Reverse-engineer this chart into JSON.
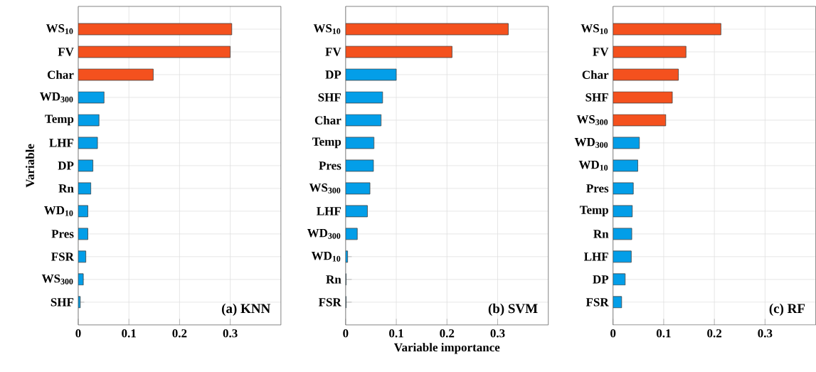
{
  "chart_data": [
    {
      "type": "bar",
      "orientation": "horizontal",
      "ylabel": "Variable",
      "annotations": [
        "(a) KNN"
      ],
      "grid": true,
      "categories": [
        "WS$_{10}$",
        "FV",
        "Char",
        "WD$_{300}$",
        "Temp",
        "LHF",
        "DP",
        "Rn",
        "WD$_{10}$",
        "Pres",
        "FSR",
        "WS$_{300}$",
        "SHF"
      ],
      "values": [
        0.303,
        0.3,
        0.148,
        0.051,
        0.041,
        0.038,
        0.029,
        0.025,
        0.019,
        0.019,
        0.015,
        0.01,
        0.004
      ],
      "colors": [
        "#f4511e",
        "#f4511e",
        "#f4511e",
        "#039ee8",
        "#039ee8",
        "#039ee8",
        "#039ee8",
        "#039ee8",
        "#039ee8",
        "#039ee8",
        "#039ee8",
        "#039ee8",
        "#039ee8"
      ],
      "xlim": [
        0,
        0.4
      ],
      "xticks": [
        0,
        0.1,
        0.2,
        0.3
      ]
    },
    {
      "type": "bar",
      "orientation": "horizontal",
      "xlabel": "Variable importance",
      "annotations": [
        "(b) SVM"
      ],
      "grid": true,
      "categories": [
        "WS$_{10}$",
        "FV",
        "DP",
        "SHF",
        "Char",
        "Temp",
        "Pres",
        "WS$_{300}$",
        "LHF",
        "WD$_{300}$",
        "WD$_{10}$",
        "Rn",
        "FSR"
      ],
      "values": [
        0.321,
        0.21,
        0.1,
        0.073,
        0.07,
        0.056,
        0.055,
        0.048,
        0.043,
        0.023,
        0.004,
        0.001,
        0.001
      ],
      "colors": [
        "#f4511e",
        "#f4511e",
        "#039ee8",
        "#039ee8",
        "#039ee8",
        "#039ee8",
        "#039ee8",
        "#039ee8",
        "#039ee8",
        "#039ee8",
        "#039ee8",
        "#039ee8",
        "#039ee8"
      ],
      "xlim": [
        0,
        0.4
      ],
      "xticks": [
        0,
        0.1,
        0.2,
        0.3
      ]
    },
    {
      "type": "bar",
      "orientation": "horizontal",
      "annotations": [
        "(c) RF"
      ],
      "grid": true,
      "categories": [
        "WS$_{10}$",
        "FV",
        "Char",
        "SHF",
        "WS$_{300}$",
        "WD$_{300}$",
        "WD$_{10}$",
        "Pres",
        "Temp",
        "Rn",
        "LHF",
        "DP",
        "FSR"
      ],
      "values": [
        0.213,
        0.144,
        0.129,
        0.117,
        0.104,
        0.052,
        0.049,
        0.04,
        0.038,
        0.037,
        0.036,
        0.024,
        0.017
      ],
      "colors": [
        "#f4511e",
        "#f4511e",
        "#f4511e",
        "#f4511e",
        "#f4511e",
        "#039ee8",
        "#039ee8",
        "#039ee8",
        "#039ee8",
        "#039ee8",
        "#039ee8",
        "#039ee8",
        "#039ee8"
      ],
      "xlim": [
        0,
        0.4
      ],
      "xticks": [
        0,
        0.1,
        0.2,
        0.3
      ]
    }
  ]
}
